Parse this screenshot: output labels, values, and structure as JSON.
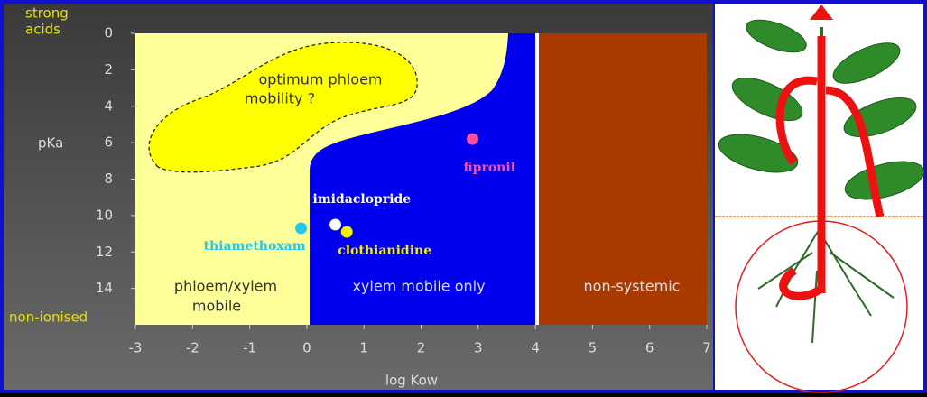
{
  "chart_data": {
    "type": "scatter",
    "x_label": "log Kow",
    "y_label": "pKa",
    "y_top_note": [
      "strong",
      "acids"
    ],
    "y_bottom_note": "non-ionised",
    "xlim": [
      -3,
      7
    ],
    "xticks": [
      -3,
      -2,
      -1,
      0,
      1,
      2,
      3,
      4,
      5,
      6,
      7
    ],
    "ylim": [
      0,
      16
    ],
    "yticks": [
      0,
      2,
      4,
      6,
      8,
      10,
      12,
      14
    ],
    "y_reversed": true,
    "regions": [
      {
        "lines": [
          "optimum phloem",
          "mobility ?"
        ]
      },
      {
        "lines": [
          "phloem/xylem",
          "mobile"
        ]
      },
      {
        "lines": [
          "xylem mobile only"
        ]
      },
      {
        "lines": [
          "non-systemic"
        ]
      }
    ],
    "series": [
      {
        "name": "thiamethoxam",
        "color": "#22c8f0",
        "x": [
          -0.1
        ],
        "values": [
          10.7
        ]
      },
      {
        "name": "imidaclopride",
        "color": "#ffffff",
        "x": [
          0.5
        ],
        "values": [
          10.5
        ]
      },
      {
        "name": "clothianidine",
        "color": "#f0f000",
        "x": [
          0.7
        ],
        "values": [
          10.9
        ]
      },
      {
        "name": "fipronil",
        "color": "#ff4fa0",
        "x": [
          2.9
        ],
        "values": [
          5.8
        ]
      }
    ]
  }
}
